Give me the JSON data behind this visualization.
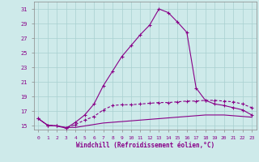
{
  "xlabel": "Windchill (Refroidissement éolien,°C)",
  "background_color": "#ceeaea",
  "line_color": "#880088",
  "xlim": [
    -0.5,
    23.5
  ],
  "ylim": [
    14.5,
    32.0
  ],
  "xticks": [
    0,
    1,
    2,
    3,
    4,
    5,
    6,
    7,
    8,
    9,
    10,
    11,
    12,
    13,
    14,
    15,
    16,
    17,
    18,
    19,
    20,
    21,
    22,
    23
  ],
  "yticks": [
    15,
    17,
    19,
    21,
    23,
    25,
    27,
    29,
    31
  ],
  "grid_color": "#a8d0d0",
  "series_peak_x": [
    0,
    1,
    2,
    3,
    4,
    5,
    6,
    7,
    8,
    9,
    10,
    11,
    12,
    13,
    14,
    15,
    16,
    17,
    18,
    19,
    20,
    21,
    22,
    23
  ],
  "series_peak_y": [
    16.0,
    15.1,
    15.0,
    14.7,
    15.5,
    16.5,
    18.0,
    20.5,
    22.5,
    24.5,
    26.0,
    27.5,
    28.8,
    31.0,
    30.5,
    29.2,
    27.8,
    20.2,
    18.5,
    18.0,
    17.8,
    17.5,
    17.2,
    16.5
  ],
  "series_mid_x": [
    0,
    1,
    2,
    3,
    4,
    5,
    6,
    7,
    8,
    9,
    10,
    11,
    12,
    13,
    14,
    15,
    16,
    17,
    18,
    19,
    20,
    21,
    22,
    23
  ],
  "series_mid_y": [
    16.0,
    15.1,
    15.0,
    14.7,
    15.2,
    15.8,
    16.3,
    17.2,
    17.8,
    17.9,
    17.9,
    18.0,
    18.1,
    18.2,
    18.2,
    18.3,
    18.4,
    18.4,
    18.5,
    18.5,
    18.4,
    18.3,
    18.0,
    17.5
  ],
  "series_base_x": [
    0,
    1,
    2,
    3,
    4,
    5,
    6,
    7,
    8,
    9,
    10,
    11,
    12,
    13,
    14,
    15,
    16,
    17,
    18,
    19,
    20,
    21,
    22,
    23
  ],
  "series_base_y": [
    16.0,
    15.1,
    15.0,
    14.8,
    14.8,
    15.0,
    15.2,
    15.4,
    15.5,
    15.6,
    15.7,
    15.8,
    15.9,
    16.0,
    16.1,
    16.2,
    16.3,
    16.4,
    16.5,
    16.5,
    16.5,
    16.4,
    16.3,
    16.2
  ]
}
